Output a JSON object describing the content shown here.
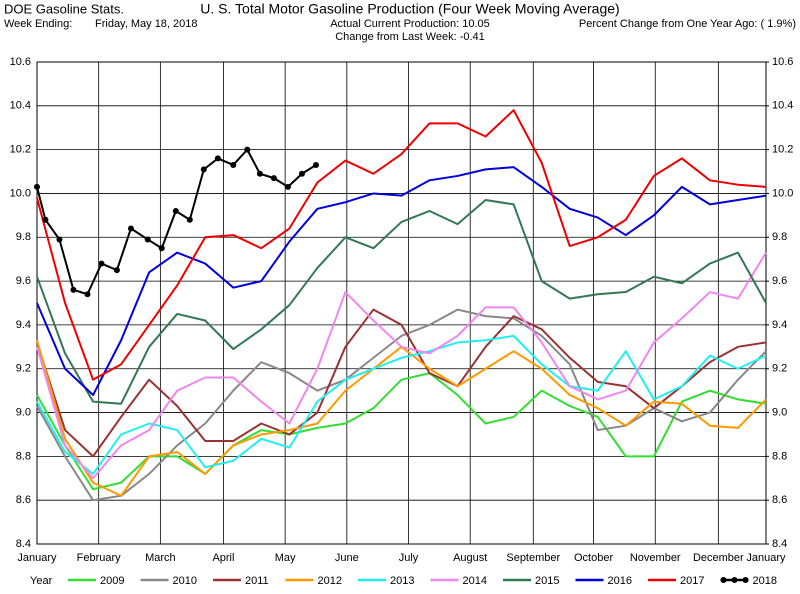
{
  "chart_data": {
    "type": "line",
    "header": "DOE Gasoline Stats.",
    "week_label": "Week Ending:",
    "week_date": "Friday, May 18, 2018",
    "title": "U. S. Total Motor Gasoline Production (Four Week Moving Average)",
    "subtitle": "Actual Current Production: 10.05",
    "subtitle2": "Change from Last Week: -0.41",
    "percent_note": "Percent Change from One Year Ago: ( 1.9%)",
    "legend_title": "Year",
    "x": [
      0,
      2,
      4,
      6,
      8,
      10,
      12,
      14,
      16,
      18,
      20,
      22,
      24,
      26,
      28,
      30,
      32,
      34,
      36,
      38,
      40,
      42,
      44,
      46,
      48,
      50,
      52
    ],
    "xlim": [
      0,
      52
    ],
    "xticks": [
      {
        "value": 0,
        "label": "January"
      },
      {
        "value": 4.4,
        "label": "February"
      },
      {
        "value": 8.8,
        "label": "March"
      },
      {
        "value": 13.3,
        "label": "April"
      },
      {
        "value": 17.7,
        "label": "May"
      },
      {
        "value": 22.1,
        "label": "June"
      },
      {
        "value": 26.5,
        "label": "July"
      },
      {
        "value": 30.9,
        "label": "August"
      },
      {
        "value": 35.4,
        "label": "September"
      },
      {
        "value": 39.7,
        "label": "October"
      },
      {
        "value": 44.1,
        "label": "November"
      },
      {
        "value": 48.6,
        "label": "December"
      },
      {
        "value": 52,
        "label": "January"
      }
    ],
    "ylim": [
      8.4,
      10.6
    ],
    "yticks": [
      8.4,
      8.6,
      8.8,
      {
        "value": 9.0,
        "label": "9.0"
      },
      9.2,
      9.4,
      9.6,
      9.8,
      {
        "value": 10.0,
        "label": "10.0"
      },
      10.2,
      10.4,
      10.6
    ],
    "y2lim": [
      8.4,
      10.6
    ],
    "y2ticks": [
      8.4,
      8.6,
      8.8,
      {
        "value": 9.0,
        "label": "9.0"
      },
      9.2,
      9.4,
      9.6,
      9.8,
      {
        "value": 10.0,
        "label": "10.0"
      },
      10.2,
      10.4,
      10.6
    ],
    "grid": true,
    "legend": "bottom",
    "series": [
      {
        "name": "2009",
        "color": "#33dd33",
        "values": [
          9.08,
          8.85,
          8.65,
          8.68,
          8.8,
          8.8,
          8.72,
          8.85,
          8.92,
          8.9,
          8.93,
          8.95,
          9.02,
          9.15,
          9.18,
          9.08,
          8.95,
          8.98,
          9.1,
          9.03,
          8.98,
          8.8,
          8.8,
          9.05,
          9.1,
          9.06,
          9.04
        ]
      },
      {
        "name": "2010",
        "color": "#888888",
        "values": [
          9.03,
          8.8,
          8.6,
          8.62,
          8.72,
          8.85,
          8.95,
          9.1,
          9.23,
          9.18,
          9.1,
          9.15,
          9.25,
          9.35,
          9.4,
          9.47,
          9.44,
          9.43,
          9.35,
          9.22,
          8.92,
          8.94,
          9.02,
          8.96,
          9.0,
          9.15,
          9.28
        ]
      },
      {
        "name": "2011",
        "color": "#993333",
        "values": [
          9.32,
          8.92,
          8.8,
          8.98,
          9.15,
          9.03,
          8.87,
          8.87,
          8.95,
          8.9,
          9.0,
          9.3,
          9.47,
          9.4,
          9.18,
          9.12,
          9.3,
          9.44,
          9.38,
          9.25,
          9.14,
          9.12,
          9.02,
          9.12,
          9.23,
          9.3,
          9.32
        ]
      },
      {
        "name": "2012",
        "color": "#ff9900",
        "values": [
          9.33,
          8.88,
          8.68,
          8.62,
          8.8,
          8.82,
          8.72,
          8.85,
          8.9,
          8.92,
          8.95,
          9.1,
          9.2,
          9.3,
          9.2,
          9.12,
          9.2,
          9.28,
          9.2,
          9.08,
          9.02,
          8.94,
          9.05,
          9.04,
          8.94,
          8.93,
          9.06
        ]
      },
      {
        "name": "2013",
        "color": "#22eeee",
        "values": [
          9.05,
          8.82,
          8.72,
          8.9,
          8.95,
          8.92,
          8.75,
          8.78,
          8.88,
          8.84,
          9.05,
          9.15,
          9.2,
          9.25,
          9.28,
          9.32,
          9.33,
          9.35,
          9.22,
          9.12,
          9.1,
          9.28,
          9.06,
          9.12,
          9.26,
          9.2,
          9.26
        ]
      },
      {
        "name": "2014",
        "color": "#ee88ee",
        "values": [
          9.3,
          8.85,
          8.7,
          8.85,
          8.92,
          9.1,
          9.16,
          9.16,
          9.05,
          8.95,
          9.2,
          9.55,
          9.42,
          9.3,
          9.27,
          9.35,
          9.48,
          9.48,
          9.32,
          9.12,
          9.06,
          9.1,
          9.32,
          9.43,
          9.55,
          9.52,
          9.73
        ]
      },
      {
        "name": "2015",
        "color": "#337755",
        "values": [
          9.62,
          9.27,
          9.05,
          9.04,
          9.3,
          9.45,
          9.42,
          9.29,
          9.38,
          9.49,
          9.66,
          9.8,
          9.75,
          9.87,
          9.92,
          9.86,
          9.97,
          9.95,
          9.6,
          9.52,
          9.54,
          9.55,
          9.62,
          9.59,
          9.68,
          9.73,
          9.5
        ]
      },
      {
        "name": "2016",
        "color": "#0000dd",
        "values": [
          9.5,
          9.2,
          9.08,
          9.33,
          9.64,
          9.73,
          9.68,
          9.57,
          9.6,
          9.78,
          9.93,
          9.96,
          10.0,
          9.99,
          10.06,
          10.08,
          10.11,
          10.12,
          10.03,
          9.93,
          9.89,
          9.81,
          9.9,
          10.03,
          9.95,
          9.97,
          9.99
        ]
      },
      {
        "name": "2017",
        "color": "#ee0000",
        "values": [
          9.98,
          9.5,
          9.15,
          9.22,
          9.4,
          9.58,
          9.8,
          9.81,
          9.75,
          9.84,
          10.05,
          10.15,
          10.09,
          10.18,
          10.32,
          10.32,
          10.26,
          10.38,
          10.14,
          9.76,
          9.8,
          9.88,
          10.08,
          10.16,
          10.06,
          10.04,
          10.03
        ]
      },
      {
        "name": "2018",
        "color": "#000000",
        "marker": "circle",
        "x": [
          0,
          0.6,
          1.6,
          2.6,
          3.6,
          4.6,
          5.7,
          6.7,
          7.9,
          8.9,
          9.9,
          10.9,
          11.9,
          12.9,
          14,
          15,
          15.9,
          16.9,
          17.9,
          18.9,
          19.9
        ],
        "values": [
          10.03,
          9.88,
          9.79,
          9.56,
          9.54,
          9.68,
          9.65,
          9.84,
          9.79,
          9.75,
          9.92,
          9.88,
          10.11,
          10.16,
          10.13,
          10.2,
          10.09,
          10.07,
          10.03,
          10.09,
          10.13
        ]
      }
    ]
  }
}
